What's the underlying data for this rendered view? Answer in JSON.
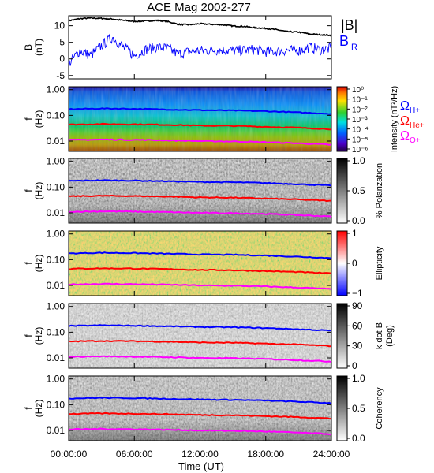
{
  "figure": {
    "title": "ACE Mag 2002-277",
    "xlabel": "Time (UT)",
    "x_ticks": [
      "00:00:00",
      "06:00:00",
      "12:00:00",
      "18:00:00",
      "24:00:00"
    ]
  },
  "legend": {
    "b_total": "|B|",
    "b_r": "B",
    "b_r_sub": "R",
    "omega": "Ω",
    "h_sub": "H+",
    "he_sub": "He+",
    "o_sub": "O+",
    "colors": {
      "b_total": "#000000",
      "b_r": "#0000ff",
      "h": "#0000ff",
      "he": "#ff0000",
      "o": "#ff00ff"
    }
  },
  "chart_data": [
    {
      "type": "line",
      "panel": "B-field",
      "ylabel_line1": "B",
      "ylabel_line2": "(nT)",
      "y_ticks": [
        "10",
        "5",
        "0",
        "-5"
      ],
      "ylim": [
        -6,
        13
      ],
      "x_hours": [
        0,
        1,
        2,
        3,
        4,
        5,
        6,
        7,
        8,
        9,
        10,
        11,
        12,
        13,
        14,
        15,
        16,
        17,
        18,
        19,
        20,
        21,
        22,
        23,
        24
      ],
      "series": [
        {
          "name": "|B|",
          "color": "#000000",
          "values": [
            11.5,
            12.1,
            12.3,
            12.2,
            12.0,
            11.6,
            11.3,
            11.4,
            11.6,
            11.3,
            10.4,
            10.3,
            10.6,
            10.4,
            10.3,
            9.9,
            9.8,
            9.4,
            9.2,
            8.8,
            8.2,
            8.1,
            7.5,
            7.3,
            7.1
          ]
        },
        {
          "name": "B_R",
          "color": "#0000ff",
          "values": [
            -1.5,
            2.5,
            1.0,
            4.0,
            6.5,
            3.5,
            1.0,
            2.8,
            3.5,
            3.2,
            1.5,
            2.2,
            2.5,
            2.6,
            2.7,
            2.4,
            2.6,
            2.8,
            2.2,
            2.3,
            2.6,
            2.5,
            3.5,
            2.7,
            3.2
          ]
        }
      ]
    },
    {
      "type": "heatmap",
      "panel": "power-spectrum",
      "ylabel_line1": "f",
      "ylabel_line2": "(Hz)",
      "y_ticks": [
        "1.00",
        "0.10",
        "0.01"
      ],
      "colorbar_label": "Intensity (nT²/Hz)",
      "colorbar_ticks": [
        "10⁰",
        "10⁻¹",
        "10⁻²",
        "10⁻³",
        "10⁻⁴",
        "10⁻⁵",
        "10⁻⁶"
      ]
    },
    {
      "type": "heatmap",
      "panel": "polarization",
      "ylabel_line1": "f",
      "ylabel_line2": "(Hz)",
      "y_ticks": [
        "1.00",
        "0.10",
        "0.01"
      ],
      "colorbar_label": "% Polarization",
      "colorbar_ticks": [
        "1.0",
        "0.5",
        "0.0"
      ]
    },
    {
      "type": "heatmap",
      "panel": "ellipticity",
      "ylabel_line1": "f",
      "ylabel_line2": "(Hz)",
      "y_ticks": [
        "1.00",
        "0.10",
        "0.01"
      ],
      "colorbar_label": "Ellipticity",
      "colorbar_ticks": [
        "1",
        "0",
        "−1"
      ]
    },
    {
      "type": "heatmap",
      "panel": "k-dot-b",
      "ylabel_line1": "f",
      "ylabel_line2": "(Hz)",
      "y_ticks": [
        "1.00",
        "0.10",
        "0.01"
      ],
      "colorbar_label_1": "k dot B",
      "colorbar_label_2": "(Deg)",
      "colorbar_ticks": [
        "90",
        "60",
        "30",
        "0"
      ]
    },
    {
      "type": "heatmap",
      "panel": "coherency",
      "ylabel_line1": "f",
      "ylabel_line2": "(Hz)",
      "y_ticks": [
        "1.00",
        "0.10",
        "0.01"
      ],
      "colorbar_label": "Coherency",
      "colorbar_ticks": [
        "1.0",
        "0.5",
        "0.0"
      ]
    }
  ],
  "gyrofrequency_lines": {
    "x_hours": [
      0,
      3,
      6,
      9,
      12,
      15,
      18,
      21,
      24
    ],
    "H_plus_hz": [
      0.175,
      0.185,
      0.18,
      0.17,
      0.16,
      0.155,
      0.145,
      0.13,
      0.115
    ],
    "He_plus_hz": [
      0.044,
      0.046,
      0.045,
      0.043,
      0.04,
      0.039,
      0.036,
      0.033,
      0.029
    ],
    "O_plus_hz": [
      0.011,
      0.0115,
      0.0112,
      0.0107,
      0.01,
      0.0097,
      0.0091,
      0.0082,
      0.0072
    ]
  }
}
